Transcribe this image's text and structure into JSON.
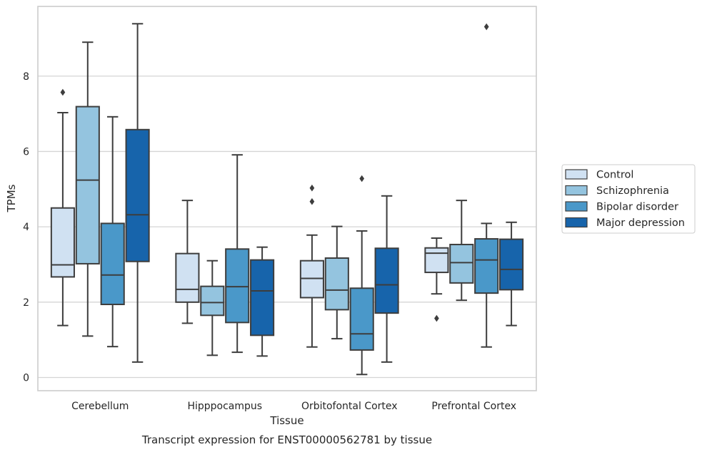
{
  "chart_data": {
    "type": "box",
    "title": "",
    "caption": "Transcript expression for ENST00000562781 by tissue",
    "xlabel": "Tissue",
    "ylabel": "TPMs",
    "ylim": [
      -0.35,
      9.85
    ],
    "yticks": [
      0,
      2,
      4,
      6,
      8
    ],
    "grid": "horizontal",
    "legend_position": "right",
    "categories": [
      "Cerebellum",
      "Hipppocampus",
      "Orbitofontal Cortex",
      "Prefrontal Cortex"
    ],
    "series": [
      {
        "name": "Control",
        "color": "#d0e1f2",
        "boxes": [
          {
            "whislo": 1.38,
            "q1": 2.67,
            "med": 2.99,
            "q3": 4.5,
            "whishi": 7.03,
            "fliers": [
              7.57
            ]
          },
          {
            "whislo": 1.44,
            "q1": 2.0,
            "med": 2.34,
            "q3": 3.29,
            "whishi": 4.7,
            "fliers": []
          },
          {
            "whislo": 0.81,
            "q1": 2.12,
            "med": 2.63,
            "q3": 3.1,
            "whishi": 3.78,
            "fliers": [
              4.67,
              5.03
            ]
          },
          {
            "whislo": 2.22,
            "q1": 2.79,
            "med": 3.3,
            "q3": 3.44,
            "whishi": 3.7,
            "fliers": [
              1.57
            ]
          }
        ]
      },
      {
        "name": "Schizophrenia",
        "color": "#94c4df",
        "boxes": [
          {
            "whislo": 1.1,
            "q1": 3.02,
            "med": 5.24,
            "q3": 7.19,
            "whishi": 8.9,
            "fliers": []
          },
          {
            "whislo": 0.59,
            "q1": 1.65,
            "med": 1.99,
            "q3": 2.42,
            "whishi": 3.1,
            "fliers": []
          },
          {
            "whislo": 1.03,
            "q1": 1.8,
            "med": 2.32,
            "q3": 3.17,
            "whishi": 4.01,
            "fliers": []
          },
          {
            "whislo": 2.05,
            "q1": 2.51,
            "med": 3.05,
            "q3": 3.53,
            "whishi": 4.7,
            "fliers": []
          }
        ]
      },
      {
        "name": "Bipolar disorder",
        "color": "#4a98c9",
        "boxes": [
          {
            "whislo": 0.82,
            "q1": 1.94,
            "med": 2.72,
            "q3": 4.09,
            "whishi": 6.92,
            "fliers": []
          },
          {
            "whislo": 0.67,
            "q1": 1.46,
            "med": 2.41,
            "q3": 3.41,
            "whishi": 5.91,
            "fliers": []
          },
          {
            "whislo": 0.08,
            "q1": 0.73,
            "med": 1.16,
            "q3": 2.37,
            "whishi": 3.89,
            "fliers": [
              5.28
            ]
          },
          {
            "whislo": 0.81,
            "q1": 2.24,
            "med": 3.12,
            "q3": 3.68,
            "whishi": 4.09,
            "fliers": [
              9.31
            ]
          }
        ]
      },
      {
        "name": "Major depression",
        "color": "#1764ab",
        "boxes": [
          {
            "whislo": 0.41,
            "q1": 3.08,
            "med": 4.32,
            "q3": 6.58,
            "whishi": 9.39,
            "fliers": []
          },
          {
            "whislo": 0.57,
            "q1": 1.12,
            "med": 2.3,
            "q3": 3.12,
            "whishi": 3.46,
            "fliers": []
          },
          {
            "whislo": 0.41,
            "q1": 1.71,
            "med": 2.46,
            "q3": 3.43,
            "whishi": 4.82,
            "fliers": []
          },
          {
            "whislo": 1.38,
            "q1": 2.33,
            "med": 2.87,
            "q3": 3.67,
            "whishi": 4.12,
            "fliers": []
          }
        ]
      }
    ]
  }
}
